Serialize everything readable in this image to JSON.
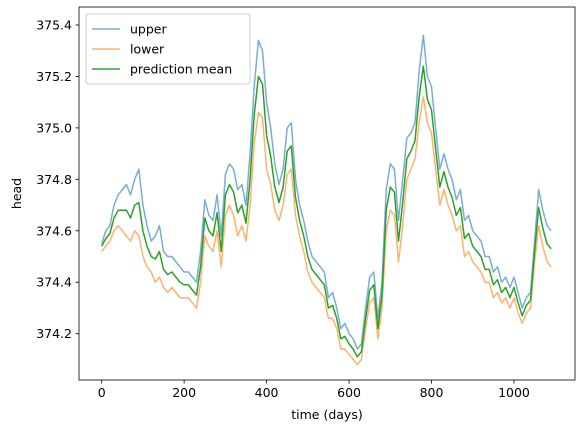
{
  "chart_data": {
    "type": "line",
    "title": "",
    "xlabel": "time (days)",
    "ylabel": "head",
    "xlim": [
      -55,
      1148
    ],
    "ylim": [
      374.02,
      375.47
    ],
    "xticks": [
      0,
      200,
      400,
      600,
      800,
      1000
    ],
    "yticks": [
      374.2,
      374.4,
      374.6,
      374.8,
      375.0,
      375.2,
      375.4
    ],
    "ytick_labels": [
      "374.2",
      "374.4",
      "374.6",
      "374.8",
      "375.0",
      "375.2",
      "375.4"
    ],
    "grid": false,
    "legend_position": "top-left",
    "colors": {
      "upper": "#1f77b4",
      "lower": "#ff7f0e",
      "mean": "#2ca02c"
    },
    "series": [
      {
        "name": "upper",
        "alpha": 0.6,
        "x": [
          0,
          10,
          20,
          30,
          40,
          50,
          60,
          70,
          80,
          90,
          100,
          110,
          120,
          130,
          140,
          150,
          160,
          170,
          180,
          190,
          200,
          210,
          220,
          230,
          240,
          250,
          260,
          270,
          280,
          290,
          300,
          310,
          320,
          330,
          340,
          350,
          360,
          370,
          380,
          390,
          400,
          410,
          420,
          430,
          440,
          450,
          460,
          470,
          480,
          490,
          500,
          510,
          520,
          530,
          540,
          550,
          560,
          570,
          580,
          590,
          600,
          610,
          620,
          630,
          640,
          650,
          660,
          670,
          680,
          690,
          700,
          710,
          720,
          730,
          740,
          750,
          760,
          770,
          780,
          790,
          800,
          810,
          820,
          830,
          840,
          850,
          860,
          870,
          880,
          890,
          900,
          910,
          920,
          930,
          940,
          950,
          960,
          970,
          980,
          990,
          1000,
          1010,
          1020,
          1030,
          1040,
          1050,
          1060,
          1070,
          1080,
          1090
        ],
        "y": [
          374.55,
          374.6,
          374.62,
          374.7,
          374.74,
          374.76,
          374.78,
          374.74,
          374.8,
          374.84,
          374.7,
          374.62,
          374.56,
          374.58,
          374.62,
          374.52,
          374.5,
          374.5,
          374.48,
          374.46,
          374.44,
          374.44,
          374.42,
          374.4,
          374.52,
          374.72,
          374.66,
          374.64,
          374.74,
          374.58,
          374.82,
          374.86,
          374.84,
          374.76,
          374.78,
          374.7,
          374.9,
          375.16,
          375.34,
          375.3,
          375.1,
          375.0,
          374.86,
          374.78,
          374.84,
          375.0,
          375.02,
          374.8,
          374.7,
          374.64,
          374.56,
          374.5,
          374.48,
          374.46,
          374.44,
          374.34,
          374.36,
          374.3,
          374.22,
          374.24,
          374.2,
          374.18,
          374.14,
          374.16,
          374.3,
          374.42,
          374.44,
          374.26,
          374.4,
          374.76,
          374.86,
          374.84,
          374.64,
          374.8,
          374.96,
          374.98,
          375.02,
          375.22,
          375.36,
          375.2,
          375.16,
          375.0,
          374.84,
          374.9,
          374.84,
          374.8,
          374.72,
          374.76,
          374.64,
          374.66,
          374.6,
          374.58,
          374.56,
          374.5,
          374.5,
          374.44,
          374.46,
          374.4,
          374.42,
          374.38,
          374.42,
          374.36,
          374.3,
          374.34,
          374.36,
          374.56,
          374.76,
          374.68,
          374.62,
          374.6
        ]
      },
      {
        "name": "lower",
        "alpha": 0.6,
        "x": [
          0,
          10,
          20,
          30,
          40,
          50,
          60,
          70,
          80,
          90,
          100,
          110,
          120,
          130,
          140,
          150,
          160,
          170,
          180,
          190,
          200,
          210,
          220,
          230,
          240,
          250,
          260,
          270,
          280,
          290,
          300,
          310,
          320,
          330,
          340,
          350,
          360,
          370,
          380,
          390,
          400,
          410,
          420,
          430,
          440,
          450,
          460,
          470,
          480,
          490,
          500,
          510,
          520,
          530,
          540,
          550,
          560,
          570,
          580,
          590,
          600,
          610,
          620,
          630,
          640,
          650,
          660,
          670,
          680,
          690,
          700,
          710,
          720,
          730,
          740,
          750,
          760,
          770,
          780,
          790,
          800,
          810,
          820,
          830,
          840,
          850,
          860,
          870,
          880,
          890,
          900,
          910,
          920,
          930,
          940,
          950,
          960,
          970,
          980,
          990,
          1000,
          1010,
          1020,
          1030,
          1040,
          1050,
          1060,
          1070,
          1080,
          1090
        ],
        "y": [
          374.52,
          374.54,
          374.56,
          374.6,
          374.62,
          374.6,
          374.58,
          374.56,
          374.6,
          374.58,
          374.5,
          374.46,
          374.44,
          374.4,
          374.42,
          374.38,
          374.36,
          374.38,
          374.36,
          374.34,
          374.34,
          374.34,
          374.32,
          374.3,
          374.4,
          374.58,
          374.54,
          374.52,
          374.6,
          374.46,
          374.66,
          374.7,
          374.66,
          374.58,
          374.62,
          374.56,
          374.7,
          374.94,
          375.06,
          375.04,
          374.84,
          374.78,
          374.68,
          374.64,
          374.7,
          374.82,
          374.84,
          374.66,
          374.58,
          374.52,
          374.44,
          374.4,
          374.38,
          374.36,
          374.34,
          374.26,
          374.26,
          374.22,
          374.14,
          374.14,
          374.12,
          374.1,
          374.08,
          374.1,
          374.22,
          374.32,
          374.34,
          374.18,
          374.3,
          374.6,
          374.68,
          374.66,
          374.48,
          374.62,
          374.8,
          374.84,
          374.88,
          375.02,
          375.12,
          375.02,
          374.98,
          374.84,
          374.7,
          374.76,
          374.7,
          374.66,
          374.6,
          374.62,
          374.5,
          374.52,
          374.48,
          374.46,
          374.44,
          374.4,
          374.4,
          374.34,
          374.36,
          374.32,
          374.34,
          374.3,
          374.34,
          374.28,
          374.24,
          374.28,
          374.3,
          374.48,
          374.62,
          374.54,
          374.48,
          374.46
        ]
      },
      {
        "name": "prediction mean",
        "alpha": 1.0,
        "x": [
          0,
          10,
          20,
          30,
          40,
          50,
          60,
          70,
          80,
          90,
          100,
          110,
          120,
          130,
          140,
          150,
          160,
          170,
          180,
          190,
          200,
          210,
          220,
          230,
          240,
          250,
          260,
          270,
          280,
          290,
          300,
          310,
          320,
          330,
          340,
          350,
          360,
          370,
          380,
          390,
          400,
          410,
          420,
          430,
          440,
          450,
          460,
          470,
          480,
          490,
          500,
          510,
          520,
          530,
          540,
          550,
          560,
          570,
          580,
          590,
          600,
          610,
          620,
          630,
          640,
          650,
          660,
          670,
          680,
          690,
          700,
          710,
          720,
          730,
          740,
          750,
          760,
          770,
          780,
          790,
          800,
          810,
          820,
          830,
          840,
          850,
          860,
          870,
          880,
          890,
          900,
          910,
          920,
          930,
          940,
          950,
          960,
          970,
          980,
          990,
          1000,
          1010,
          1020,
          1030,
          1040,
          1050,
          1060,
          1070,
          1080,
          1090
        ],
        "y": [
          374.54,
          374.57,
          374.59,
          374.65,
          374.68,
          374.68,
          374.68,
          374.65,
          374.7,
          374.71,
          374.6,
          374.54,
          374.5,
          374.49,
          374.52,
          374.45,
          374.43,
          374.44,
          374.42,
          374.4,
          374.39,
          374.39,
          374.37,
          374.35,
          374.46,
          374.65,
          374.6,
          374.58,
          374.67,
          374.52,
          374.74,
          374.78,
          374.75,
          374.67,
          374.7,
          374.63,
          374.8,
          375.05,
          375.2,
          375.17,
          374.97,
          374.89,
          374.77,
          374.71,
          374.77,
          374.91,
          374.93,
          374.73,
          374.64,
          374.58,
          374.5,
          374.45,
          374.43,
          374.41,
          374.39,
          374.3,
          374.31,
          374.26,
          374.18,
          374.19,
          374.16,
          374.14,
          374.11,
          374.13,
          374.26,
          374.37,
          374.39,
          374.22,
          374.35,
          374.68,
          374.77,
          374.75,
          374.56,
          374.71,
          374.88,
          374.91,
          374.95,
          375.12,
          375.24,
          375.11,
          375.07,
          374.92,
          374.77,
          374.83,
          374.77,
          374.73,
          374.66,
          374.69,
          374.57,
          374.59,
          374.54,
          374.52,
          374.5,
          374.45,
          374.45,
          374.39,
          374.41,
          374.36,
          374.38,
          374.34,
          374.38,
          374.32,
          374.27,
          374.31,
          374.33,
          374.52,
          374.69,
          374.61,
          374.55,
          374.53
        ]
      }
    ]
  }
}
